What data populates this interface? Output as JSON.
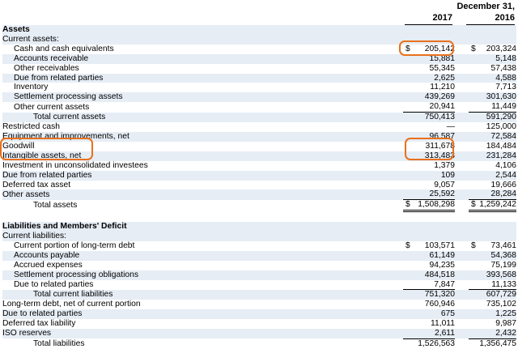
{
  "header": {
    "date_label": "December 31,",
    "col_2017": "2017",
    "col_2016": "2016"
  },
  "rows": [
    {
      "label": "Assets",
      "section": true
    },
    {
      "label": "Current assets:"
    },
    {
      "label": "Cash and cash equivalents",
      "indent": 1,
      "cur2017": "$",
      "v2017": "205,142",
      "cur2016": "$",
      "v2016": "203,324"
    },
    {
      "label": "Accounts receivable",
      "indent": 1,
      "v2017": "15,881",
      "v2016": "5,148"
    },
    {
      "label": "Other receivables",
      "indent": 1,
      "v2017": "55,345",
      "v2016": "57,438"
    },
    {
      "label": "Due from related parties",
      "indent": 1,
      "v2017": "2,625",
      "v2016": "4,588"
    },
    {
      "label": "Inventory",
      "indent": 1,
      "v2017": "11,210",
      "v2016": "7,713"
    },
    {
      "label": "Settlement processing assets",
      "indent": 1,
      "v2017": "439,269",
      "v2016": "301,630"
    },
    {
      "label": "Other current assets",
      "indent": 1,
      "v2017": "20,941",
      "v2016": "11,449",
      "rule": "single"
    },
    {
      "label": "Total current assets",
      "indent": 2,
      "v2017": "750,413",
      "v2016": "591,290"
    },
    {
      "label": "Restricted cash",
      "v2017": "—",
      "v2016": "125,000"
    },
    {
      "label": "Equipment and improvements, net",
      "v2017": "96,587",
      "v2016": "72,584"
    },
    {
      "label": "Goodwill",
      "v2017": "311,678",
      "v2016": "184,484"
    },
    {
      "label": "Intangible assets, net",
      "v2017": "313,483",
      "v2016": "231,284"
    },
    {
      "label": "Investment in unconsolidated investees",
      "v2017": "1,379",
      "v2016": "4,106"
    },
    {
      "label": "Due from related parties",
      "v2017": "109",
      "v2016": "2,544"
    },
    {
      "label": "Deferred tax asset",
      "v2017": "9,057",
      "v2016": "19,666"
    },
    {
      "label": "Other assets",
      "v2017": "25,592",
      "v2016": "28,284",
      "rule": "single"
    },
    {
      "label": "Total assets",
      "indent": 2,
      "cur2017": "$",
      "v2017": "1,508,298",
      "cur2016": "$",
      "v2016": "1,259,242",
      "rule": "double"
    },
    {
      "label": "",
      "spacer": true
    },
    {
      "label": "Liabilities and Members' Deficit",
      "section": true
    },
    {
      "label": "Current liabilities:"
    },
    {
      "label": "Current portion of long-term debt",
      "indent": 1,
      "cur2017": "$",
      "v2017": "103,571",
      "cur2016": "$",
      "v2016": "73,461"
    },
    {
      "label": "Accounts payable",
      "indent": 1,
      "v2017": "61,149",
      "v2016": "54,368"
    },
    {
      "label": "Accrued expenses",
      "indent": 1,
      "v2017": "94,235",
      "v2016": "75,199"
    },
    {
      "label": "Settlement processing obligations",
      "indent": 1,
      "v2017": "484,518",
      "v2016": "393,568"
    },
    {
      "label": "Due to related parties",
      "indent": 1,
      "v2017": "7,847",
      "v2016": "11,133",
      "rule": "single"
    },
    {
      "label": "Total current liabilities",
      "indent": 2,
      "v2017": "751,320",
      "v2016": "607,729"
    },
    {
      "label": "Long-term debt, net of current portion",
      "v2017": "760,946",
      "v2016": "735,102"
    },
    {
      "label": "Due to related parties",
      "v2017": "675",
      "v2016": "1,225"
    },
    {
      "label": "Deferred tax liability",
      "v2017": "11,011",
      "v2016": "9,987"
    },
    {
      "label": "ISO reserves",
      "v2017": "2,611",
      "v2016": "2,432",
      "rule": "single"
    },
    {
      "label": "Total liabilities",
      "indent": 2,
      "v2017": "1,526,563",
      "v2016": "1,356,475"
    }
  ],
  "annotation_color": "#e8711e"
}
